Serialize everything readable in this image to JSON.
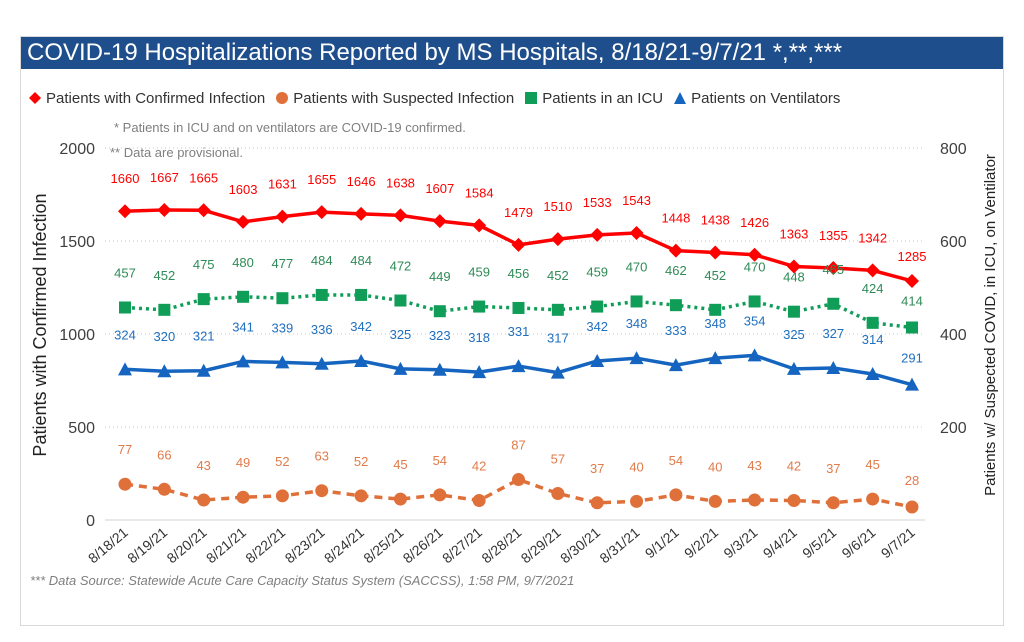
{
  "chart_data": {
    "type": "line",
    "title": "COVID-19 Hospitalizations Reported by MS Hospitals, 8/18/21-9/7/21 *,**,***",
    "categories": [
      "8/18/21",
      "8/19/21",
      "8/20/21",
      "8/21/21",
      "8/22/21",
      "8/23/21",
      "8/24/21",
      "8/25/21",
      "8/26/21",
      "8/27/21",
      "8/28/21",
      "8/29/21",
      "8/30/21",
      "8/31/21",
      "9/1/21",
      "9/2/21",
      "9/3/21",
      "9/4/21",
      "9/5/21",
      "9/6/21",
      "9/7/21"
    ],
    "ylabel_left": "Patients with Confirmed Infection",
    "ylabel_right": "Patients w/ Suspected COVID, in ICU, on Ventilator",
    "ylim_left": [
      0,
      2000
    ],
    "ylim_right": [
      0,
      800
    ],
    "yticks_left": [
      "0",
      "500",
      "1000",
      "1500",
      "2000"
    ],
    "yticks_right": [
      "200",
      "400",
      "600",
      "800"
    ],
    "gridlines": "dotted",
    "legend_position": "top",
    "series": [
      {
        "name": "Patients with Confirmed Infection",
        "axis": "left",
        "marker": "diamond",
        "line": "solid",
        "color": "#ff0000",
        "label_color": "#ff0000",
        "values": [
          1660,
          1667,
          1665,
          1603,
          1631,
          1655,
          1646,
          1638,
          1607,
          1584,
          1479,
          1510,
          1533,
          1543,
          1448,
          1438,
          1426,
          1363,
          1355,
          1342,
          1285
        ]
      },
      {
        "name": "Patients with Suspected Infection",
        "axis": "right",
        "marker": "circle",
        "line": "dashed",
        "color": "#e0703a",
        "label_color": "#e07b4a",
        "values": [
          77,
          66,
          43,
          49,
          52,
          63,
          52,
          45,
          54,
          42,
          87,
          57,
          37,
          40,
          54,
          40,
          43,
          42,
          37,
          45,
          28
        ]
      },
      {
        "name": "Patients in an ICU",
        "axis": "right",
        "marker": "square",
        "line": "dotted",
        "color": "#0f9d58",
        "label_color": "#2e8b57",
        "values": [
          457,
          452,
          475,
          480,
          477,
          484,
          484,
          472,
          449,
          459,
          456,
          452,
          459,
          470,
          462,
          452,
          470,
          448,
          465,
          424,
          414
        ]
      },
      {
        "name": "Patients on Ventilators",
        "axis": "right",
        "marker": "triangle",
        "line": "solid",
        "color": "#1565c0",
        "label_color": "#1f6fbf",
        "values": [
          324,
          320,
          321,
          341,
          339,
          336,
          342,
          325,
          323,
          318,
          331,
          317,
          342,
          348,
          333,
          348,
          354,
          325,
          327,
          314,
          291
        ]
      }
    ],
    "notes": [
      "* Patients in ICU and on ventilators are COVID-19 confirmed.",
      "** Data are provisional."
    ],
    "source": "*** Data Source: Statewide Acute Care Capacity Status System (SACCSS), 1:58 PM, 9/7/2021"
  }
}
